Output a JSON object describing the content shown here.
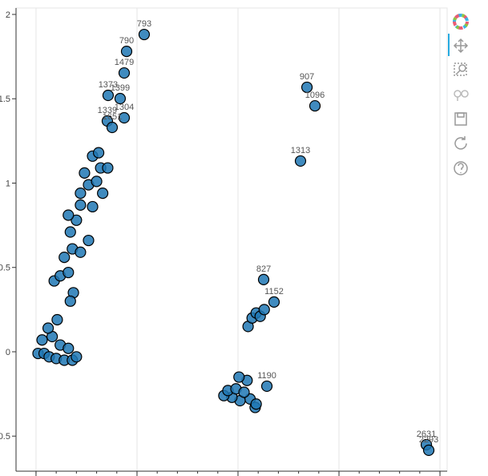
{
  "chart_data": {
    "type": "scatter",
    "x": [
      1.071,
      0.897,
      0.873,
      0.714,
      0.833,
      2.683,
      2.762,
      2.619,
      2.254,
      2.357,
      2.286,
      3.865,
      3.889,
      0.873,
      0.706,
      0.754,
      0.02,
      0.08,
      0.13,
      0.2,
      0.28,
      0.36,
      0.06,
      0.16,
      0.24,
      0.32,
      0.4,
      0.12,
      0.21,
      0.18,
      0.24,
      0.32,
      0.28,
      0.36,
      0.44,
      0.34,
      0.4,
      0.52,
      0.32,
      0.44,
      0.56,
      0.44,
      0.52,
      0.6,
      0.48,
      0.64,
      0.56,
      0.62,
      0.71,
      0.66,
      0.37,
      0.34,
      2.1,
      2.14,
      2.18,
      2.22,
      2.26,
      2.12,
      2.02,
      1.94,
      1.86,
      1.9,
      1.98,
      2.06,
      2.17,
      2.09,
      2.01,
      2.18
    ],
    "values": [
      1.881,
      1.781,
      1.653,
      1.52,
      1.501,
      1.568,
      1.458,
      1.131,
      0.428,
      0.295,
      -0.204,
      -0.551,
      -0.584,
      1.387,
      1.368,
      1.33,
      -0.01,
      -0.01,
      -0.03,
      -0.04,
      -0.05,
      -0.05,
      0.07,
      0.09,
      0.04,
      0.02,
      -0.03,
      0.14,
      0.19,
      0.42,
      0.45,
      0.47,
      0.56,
      0.61,
      0.59,
      0.71,
      0.78,
      0.66,
      0.81,
      0.87,
      0.86,
      0.94,
      0.99,
      1.01,
      1.06,
      1.09,
      1.16,
      1.18,
      1.09,
      0.94,
      0.35,
      0.3,
      0.15,
      0.2,
      0.23,
      0.21,
      0.25,
      -0.28,
      -0.29,
      -0.27,
      -0.26,
      -0.23,
      -0.22,
      -0.24,
      -0.33,
      -0.17,
      -0.15,
      -0.31
    ],
    "labels": [
      "793",
      "790",
      "1479",
      "1373",
      "1399",
      "907",
      "1096",
      "1313",
      "827",
      "1152",
      "1190",
      "2631",
      "2293",
      "1304",
      "1339",
      "1651",
      null,
      null,
      null,
      null,
      null,
      null,
      null,
      null,
      null,
      null,
      null,
      null,
      null,
      null,
      null,
      null,
      null,
      null,
      null,
      null,
      null,
      null,
      null,
      null,
      null,
      null,
      null,
      null,
      null,
      null,
      null,
      null,
      null,
      null,
      null,
      null,
      null,
      null,
      null,
      null,
      null,
      null,
      null,
      null,
      null,
      null,
      null,
      null,
      null,
      null,
      null,
      null
    ],
    "color": "#1f77b4",
    "xlim": [
      -0.198,
      4.071
    ],
    "ylim": [
      -0.708,
      2.038
    ],
    "xticks": [
      0,
      1,
      2,
      3,
      4
    ],
    "yticks": [
      -0.5,
      0,
      0.5,
      1,
      1.5,
      2
    ],
    "grid": true
  }
}
